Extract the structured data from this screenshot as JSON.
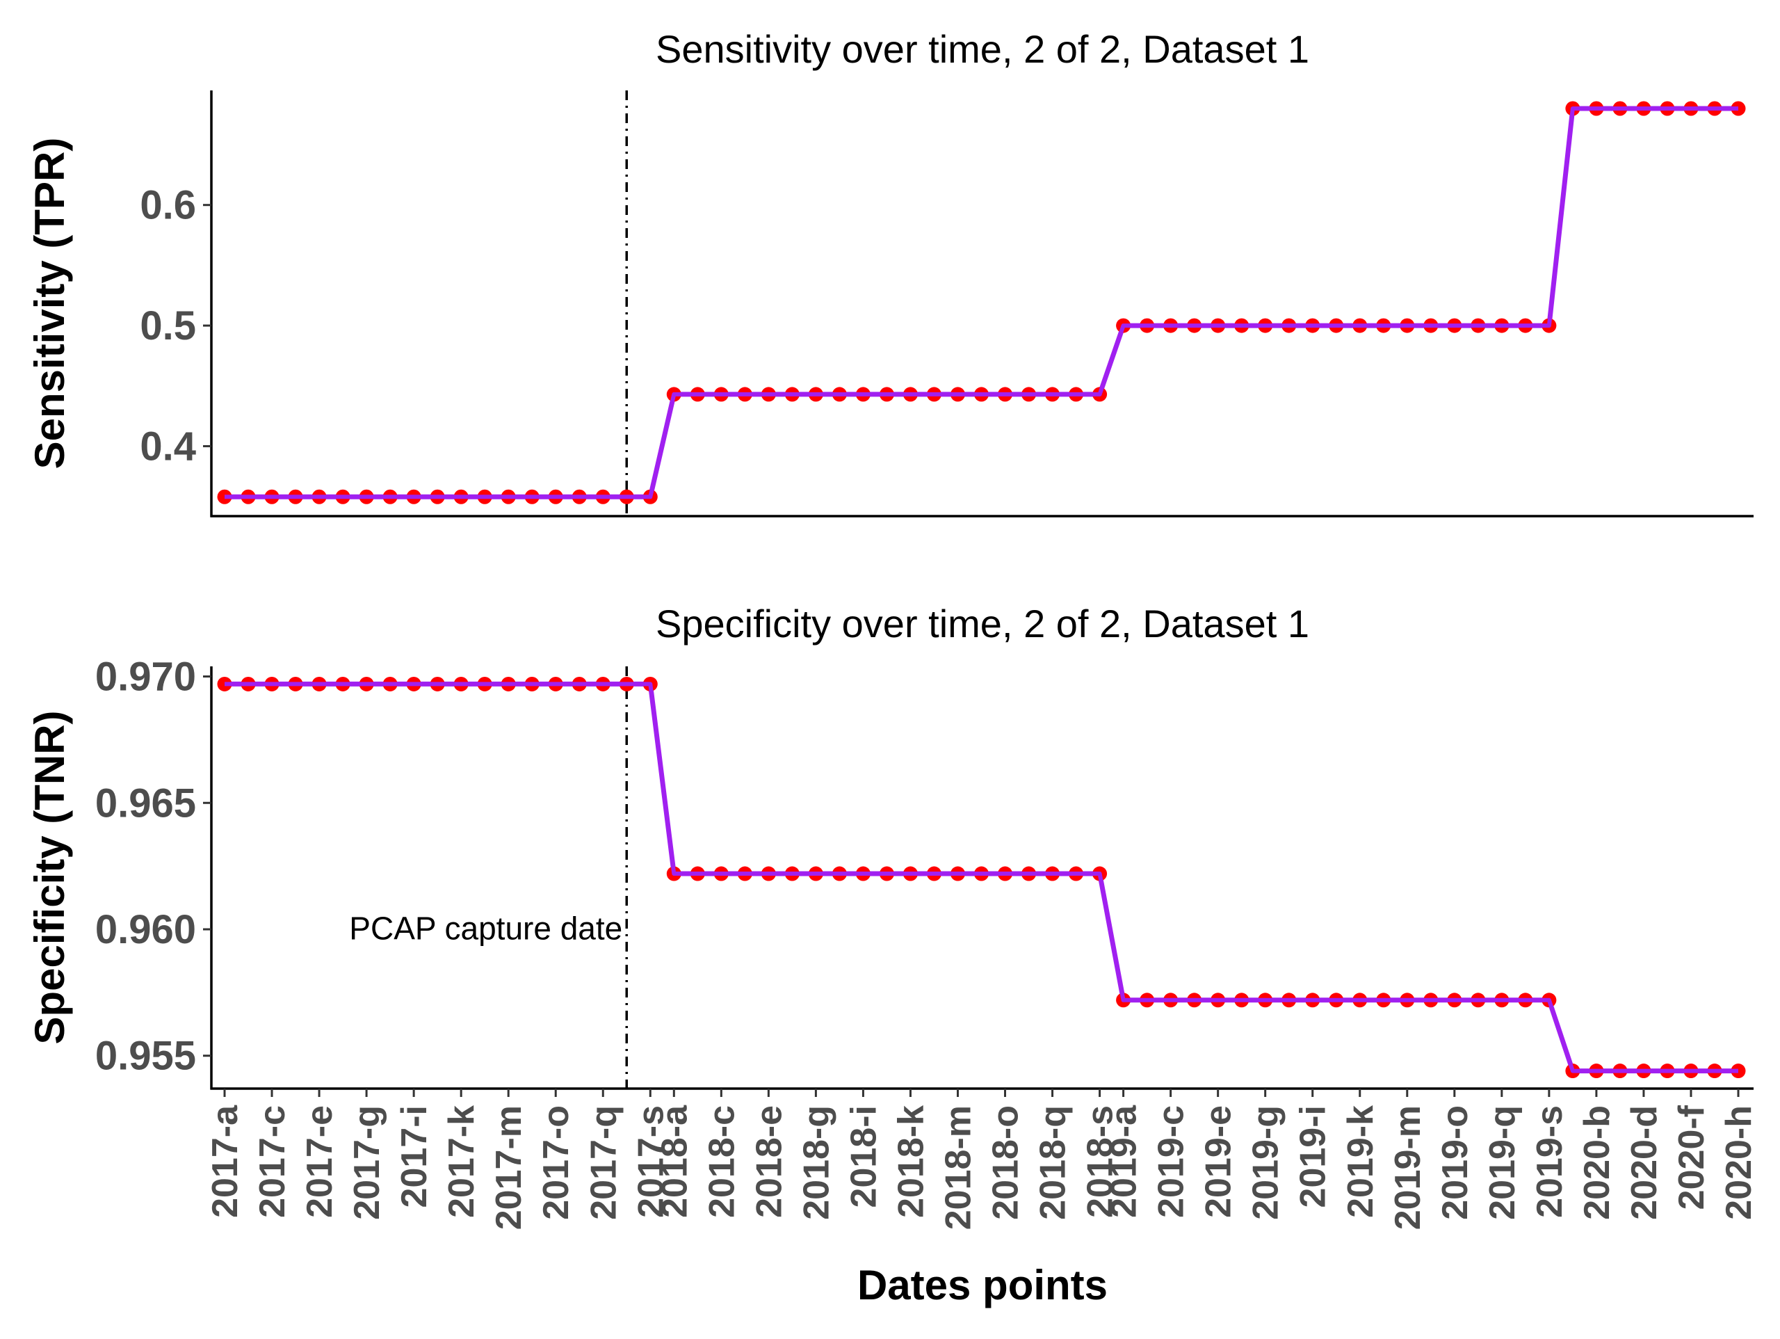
{
  "chart_data": [
    {
      "type": "line",
      "title": "Sensitivity over time, 2 of 2, Dataset 1",
      "xlabel": "",
      "ylabel": "Sensitivity (TPR)",
      "ylim": [
        0.342,
        0.695
      ],
      "yticks": [
        0.4,
        0.5,
        0.6
      ],
      "ytick_labels": [
        "0.4",
        "0.5",
        "0.6"
      ],
      "vline": {
        "x": "2017-r",
        "style": "dotdash"
      },
      "line_color": "#a020f0",
      "point_color": "#ff0000",
      "x": [
        "2017-a",
        "2017-b",
        "2017-c",
        "2017-d",
        "2017-e",
        "2017-f",
        "2017-g",
        "2017-h",
        "2017-i",
        "2017-j",
        "2017-k",
        "2017-l",
        "2017-m",
        "2017-n",
        "2017-o",
        "2017-p",
        "2017-q",
        "2017-r",
        "2017-s",
        "2018-a",
        "2018-b",
        "2018-c",
        "2018-d",
        "2018-e",
        "2018-f",
        "2018-g",
        "2018-h",
        "2018-i",
        "2018-j",
        "2018-k",
        "2018-l",
        "2018-m",
        "2018-n",
        "2018-o",
        "2018-p",
        "2018-q",
        "2018-r",
        "2018-s",
        "2019-a",
        "2019-b",
        "2019-c",
        "2019-d",
        "2019-e",
        "2019-f",
        "2019-g",
        "2019-h",
        "2019-i",
        "2019-j",
        "2019-k",
        "2019-l",
        "2019-m",
        "2019-n",
        "2019-o",
        "2019-p",
        "2019-q",
        "2019-r",
        "2019-s",
        "2020-a",
        "2020-b",
        "2020-c",
        "2020-d",
        "2020-e",
        "2020-f",
        "2020-g",
        "2020-h"
      ],
      "y": [
        0.358,
        0.358,
        0.358,
        0.358,
        0.358,
        0.358,
        0.358,
        0.358,
        0.358,
        0.358,
        0.358,
        0.358,
        0.358,
        0.358,
        0.358,
        0.358,
        0.358,
        0.358,
        0.358,
        0.443,
        0.443,
        0.443,
        0.443,
        0.443,
        0.443,
        0.443,
        0.443,
        0.443,
        0.443,
        0.443,
        0.443,
        0.443,
        0.443,
        0.443,
        0.443,
        0.443,
        0.443,
        0.443,
        0.5,
        0.5,
        0.5,
        0.5,
        0.5,
        0.5,
        0.5,
        0.5,
        0.5,
        0.5,
        0.5,
        0.5,
        0.5,
        0.5,
        0.5,
        0.5,
        0.5,
        0.5,
        0.5,
        0.68,
        0.68,
        0.68,
        0.68,
        0.68,
        0.68,
        0.68,
        0.68
      ]
    },
    {
      "type": "line",
      "title": "Specificity over time, 2 of 2, Dataset 1",
      "xlabel": "Dates points",
      "ylabel": "Specificity (TNR)",
      "ylim": [
        0.9537,
        0.9704
      ],
      "yticks": [
        0.955,
        0.96,
        0.965,
        0.97
      ],
      "ytick_labels": [
        "0.955",
        "0.960",
        "0.965",
        "0.970"
      ],
      "vline": {
        "x": "2017-r",
        "style": "dotdash",
        "label": "PCAP capture date"
      },
      "line_color": "#a020f0",
      "point_color": "#ff0000",
      "xtick_labels": [
        "2017-a",
        "2017-c",
        "2017-e",
        "2017-g",
        "2017-i",
        "2017-k",
        "2017-m",
        "2017-o",
        "2017-q",
        "2017-s",
        "2018-a",
        "2018-c",
        "2018-e",
        "2018-g",
        "2018-i",
        "2018-k",
        "2018-m",
        "2018-o",
        "2018-q",
        "2018-s",
        "2019-a",
        "2019-c",
        "2019-e",
        "2019-g",
        "2019-i",
        "2019-k",
        "2019-m",
        "2019-o",
        "2019-q",
        "2019-s",
        "2020-b",
        "2020-d",
        "2020-f",
        "2020-h"
      ],
      "x": [
        "2017-a",
        "2017-b",
        "2017-c",
        "2017-d",
        "2017-e",
        "2017-f",
        "2017-g",
        "2017-h",
        "2017-i",
        "2017-j",
        "2017-k",
        "2017-l",
        "2017-m",
        "2017-n",
        "2017-o",
        "2017-p",
        "2017-q",
        "2017-r",
        "2017-s",
        "2018-a",
        "2018-b",
        "2018-c",
        "2018-d",
        "2018-e",
        "2018-f",
        "2018-g",
        "2018-h",
        "2018-i",
        "2018-j",
        "2018-k",
        "2018-l",
        "2018-m",
        "2018-n",
        "2018-o",
        "2018-p",
        "2018-q",
        "2018-r",
        "2018-s",
        "2019-a",
        "2019-b",
        "2019-c",
        "2019-d",
        "2019-e",
        "2019-f",
        "2019-g",
        "2019-h",
        "2019-i",
        "2019-j",
        "2019-k",
        "2019-l",
        "2019-m",
        "2019-n",
        "2019-o",
        "2019-p",
        "2019-q",
        "2019-r",
        "2019-s",
        "2020-a",
        "2020-b",
        "2020-c",
        "2020-d",
        "2020-e",
        "2020-f",
        "2020-g",
        "2020-h"
      ],
      "y": [
        0.9697,
        0.9697,
        0.9697,
        0.9697,
        0.9697,
        0.9697,
        0.9697,
        0.9697,
        0.9697,
        0.9697,
        0.9697,
        0.9697,
        0.9697,
        0.9697,
        0.9697,
        0.9697,
        0.9697,
        0.9697,
        0.9697,
        0.9622,
        0.9622,
        0.9622,
        0.9622,
        0.9622,
        0.9622,
        0.9622,
        0.9622,
        0.9622,
        0.9622,
        0.9622,
        0.9622,
        0.9622,
        0.9622,
        0.9622,
        0.9622,
        0.9622,
        0.9622,
        0.9622,
        0.9572,
        0.9572,
        0.9572,
        0.9572,
        0.9572,
        0.9572,
        0.9572,
        0.9572,
        0.9572,
        0.9572,
        0.9572,
        0.9572,
        0.9572,
        0.9572,
        0.9572,
        0.9572,
        0.9572,
        0.9572,
        0.9572,
        0.9544,
        0.9544,
        0.9544,
        0.9544,
        0.9544,
        0.9544,
        0.9544,
        0.9544
      ]
    }
  ]
}
